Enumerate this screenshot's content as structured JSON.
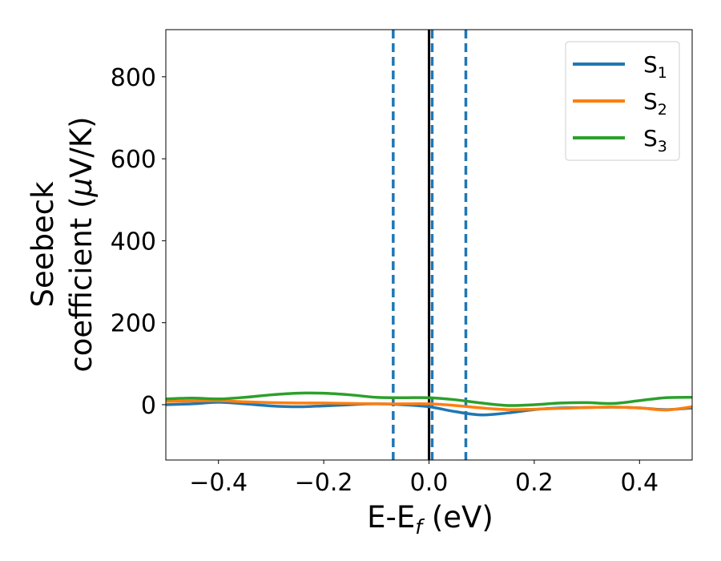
{
  "chart_data": {
    "type": "line",
    "xlabel": {
      "base": "E-E",
      "sub": "f",
      "unit": " (eV)"
    },
    "ylabel": {
      "line1": "Seebeck",
      "line2": "coefficient  (",
      "mu": "μ",
      "line2_end": "V/K)"
    },
    "xlim": [
      -0.5,
      0.5
    ],
    "ylim": [
      -135,
      915
    ],
    "xticks": [
      -0.4,
      -0.2,
      0.0,
      0.2,
      0.4
    ],
    "xtick_labels": [
      "−0.4",
      "−0.2",
      "0.0",
      "0.2",
      "0.4"
    ],
    "yticks": [
      0,
      200,
      400,
      600,
      800
    ],
    "ytick_labels": [
      "0",
      "200",
      "400",
      "600",
      "800"
    ],
    "grid": false,
    "legend": {
      "placement": "top-right",
      "entries": [
        {
          "base": "S",
          "sub": "1"
        },
        {
          "base": "S",
          "sub": "2"
        },
        {
          "base": "S",
          "sub": "3"
        }
      ]
    },
    "vlines": [
      {
        "x": -0.068,
        "style": "dashed",
        "color": "#1f77b4"
      },
      {
        "x": 0.0,
        "style": "solid",
        "color": "#000000"
      },
      {
        "x": 0.006,
        "style": "dashed",
        "color": "#1f77b4"
      },
      {
        "x": 0.07,
        "style": "dashed",
        "color": "#1f77b4"
      }
    ],
    "series": [
      {
        "name": "S1",
        "color": "#1f77b4",
        "x": [
          -0.5,
          -0.45,
          -0.4,
          -0.35,
          -0.3,
          -0.25,
          -0.2,
          -0.15,
          -0.1,
          -0.05,
          0.0,
          0.05,
          0.1,
          0.15,
          0.2,
          0.25,
          0.3,
          0.35,
          0.4,
          0.45,
          0.5
        ],
        "y": [
          0,
          2,
          6,
          2,
          -3,
          -5,
          -3,
          0,
          2,
          0,
          -5,
          -17,
          -25,
          -20,
          -12,
          -8,
          -7,
          -6,
          -8,
          -12,
          -8
        ]
      },
      {
        "name": "S2",
        "color": "#ff7f0e",
        "x": [
          -0.5,
          -0.45,
          -0.4,
          -0.35,
          -0.3,
          -0.25,
          -0.2,
          -0.15,
          -0.1,
          -0.05,
          0.0,
          0.05,
          0.1,
          0.15,
          0.2,
          0.25,
          0.3,
          0.35,
          0.4,
          0.45,
          0.5
        ],
        "y": [
          8,
          9,
          10,
          7,
          5,
          4,
          4,
          3,
          2,
          2,
          2,
          -2,
          -8,
          -12,
          -11,
          -9,
          -7,
          -6,
          -8,
          -13,
          -5
        ]
      },
      {
        "name": "S3",
        "color": "#2ca02c",
        "x": [
          -0.5,
          -0.45,
          -0.4,
          -0.35,
          -0.3,
          -0.25,
          -0.2,
          -0.15,
          -0.1,
          -0.05,
          0.0,
          0.05,
          0.1,
          0.15,
          0.2,
          0.25,
          0.3,
          0.35,
          0.4,
          0.45,
          0.5
        ],
        "y": [
          14,
          16,
          14,
          18,
          24,
          28,
          28,
          24,
          18,
          17,
          17,
          12,
          4,
          -2,
          0,
          4,
          5,
          3,
          10,
          17,
          18
        ]
      }
    ]
  }
}
